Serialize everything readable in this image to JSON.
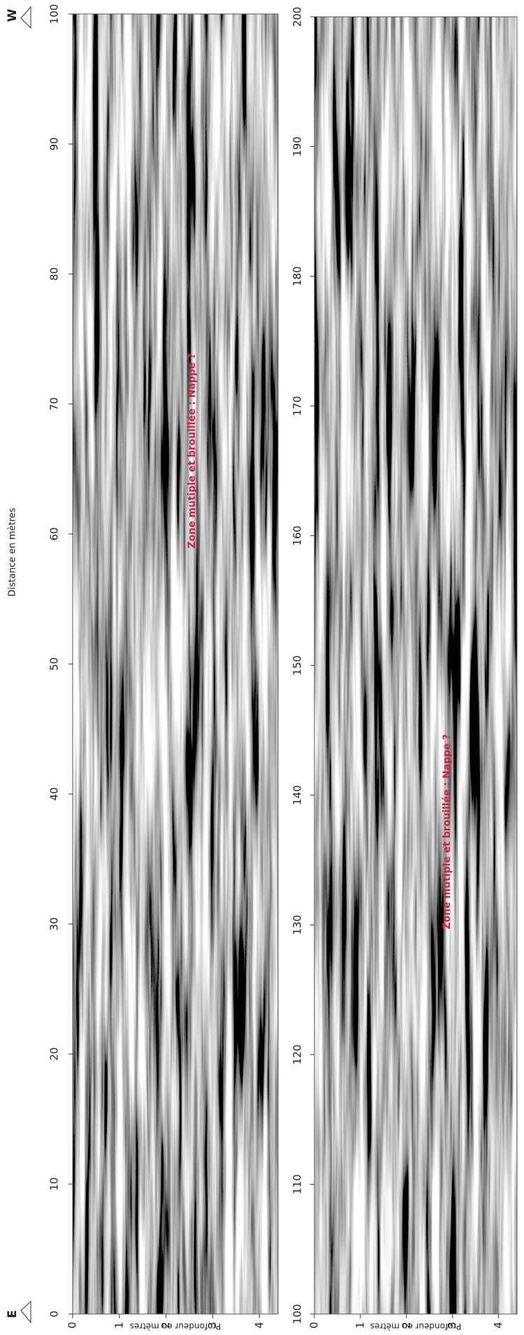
{
  "panels": [
    {
      "direction_start": "E",
      "direction_end": "W",
      "distance_label": "Distance en mètres",
      "distance_ticks": [
        0,
        10,
        20,
        30,
        40,
        50,
        60,
        70,
        80,
        90,
        100
      ],
      "depth_label": "Profondeur en mètres",
      "depth_ticks": [
        0,
        1,
        2,
        3,
        4
      ],
      "depth_lim": [
        0,
        4.4
      ],
      "annotation": "Zone mutiple et brouillée : Nappe ?"
    },
    {
      "distance_ticks": [
        100,
        110,
        120,
        130,
        140,
        150,
        160,
        170,
        180,
        190,
        200
      ],
      "depth_label": "Profondeur en mètres",
      "depth_ticks": [
        0,
        1,
        2,
        3,
        4
      ],
      "depth_lim": [
        0,
        4.4
      ],
      "annotation": "Zone mutiple et brouillée : Nappe ?"
    }
  ]
}
